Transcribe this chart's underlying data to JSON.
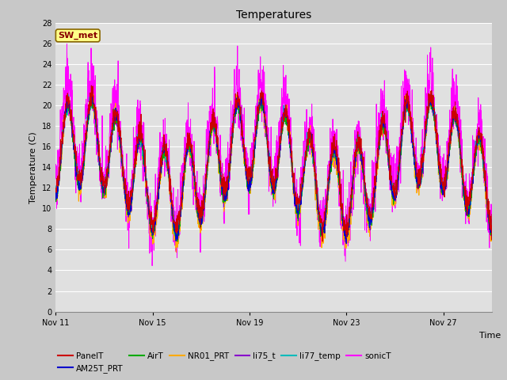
{
  "title": "Temperatures",
  "ylabel": "Temperature (C)",
  "xlabel": "Time",
  "ylim": [
    0,
    28
  ],
  "yticks": [
    0,
    2,
    4,
    6,
    8,
    10,
    12,
    14,
    16,
    18,
    20,
    22,
    24,
    26,
    28
  ],
  "xtick_labels": [
    "Nov 11",
    "Nov 15",
    "Nov 19",
    "Nov 23",
    "Nov 27"
  ],
  "fig_bg_color": "#c8c8c8",
  "plot_bg_color": "#e0e0e0",
  "grid_color": "#ffffff",
  "series_colors": {
    "PanelT": "#cc0000",
    "AM25T_PRT": "#0000cc",
    "AirT": "#00aa00",
    "NR01_PRT": "#ffaa00",
    "li75_t": "#8800cc",
    "li77_temp": "#00bbbb",
    "sonicT": "#ff00ff"
  },
  "sw_met_label": "SW_met",
  "sw_met_bg": "#ffff88",
  "sw_met_border": "#886600",
  "sw_met_text_color": "#880000",
  "n_points": 2000,
  "legend_ncol": 6
}
